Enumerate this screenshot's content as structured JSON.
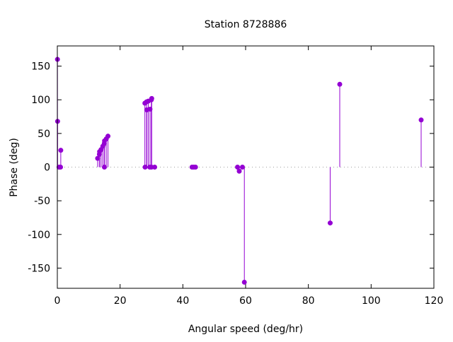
{
  "chart_data": {
    "type": "impulse-scatter",
    "title": "Station 8728886",
    "xlabel": "Angular speed (deg/hr)",
    "ylabel": "Phase (deg)",
    "xlim": [
      0,
      120
    ],
    "ylim": [
      -180,
      180
    ],
    "xticks": [
      0,
      20,
      40,
      60,
      80,
      100,
      120
    ],
    "yticks": [
      -150,
      -100,
      -50,
      0,
      50,
      100,
      150
    ],
    "color": "#9400d3",
    "points": [
      {
        "x": 0.04,
        "y": 160
      },
      {
        "x": 0.08,
        "y": 68
      },
      {
        "x": 0.54,
        "y": 0
      },
      {
        "x": 1.02,
        "y": 0
      },
      {
        "x": 1.1,
        "y": 25
      },
      {
        "x": 12.85,
        "y": 13
      },
      {
        "x": 13.4,
        "y": 19
      },
      {
        "x": 13.47,
        "y": 23
      },
      {
        "x": 13.94,
        "y": 26
      },
      {
        "x": 14.49,
        "y": 31
      },
      {
        "x": 14.96,
        "y": 35
      },
      {
        "x": 15.0,
        "y": 0
      },
      {
        "x": 15.04,
        "y": 39
      },
      {
        "x": 15.59,
        "y": 42
      },
      {
        "x": 16.14,
        "y": 46
      },
      {
        "x": 27.9,
        "y": 95
      },
      {
        "x": 27.97,
        "y": 0
      },
      {
        "x": 28.44,
        "y": 97
      },
      {
        "x": 28.51,
        "y": 85
      },
      {
        "x": 28.98,
        "y": 98
      },
      {
        "x": 29.46,
        "y": 0
      },
      {
        "x": 29.53,
        "y": 86
      },
      {
        "x": 29.96,
        "y": 100
      },
      {
        "x": 30.0,
        "y": 0
      },
      {
        "x": 30.08,
        "y": 102
      },
      {
        "x": 31.02,
        "y": 0
      },
      {
        "x": 42.93,
        "y": 0
      },
      {
        "x": 43.48,
        "y": 0
      },
      {
        "x": 44.03,
        "y": 0
      },
      {
        "x": 57.42,
        "y": 0
      },
      {
        "x": 57.97,
        "y": -6
      },
      {
        "x": 58.98,
        "y": 0
      },
      {
        "x": 59.6,
        "y": -171
      },
      {
        "x": 86.95,
        "y": -83
      },
      {
        "x": 90.0,
        "y": 123
      },
      {
        "x": 115.94,
        "y": 70
      }
    ]
  }
}
